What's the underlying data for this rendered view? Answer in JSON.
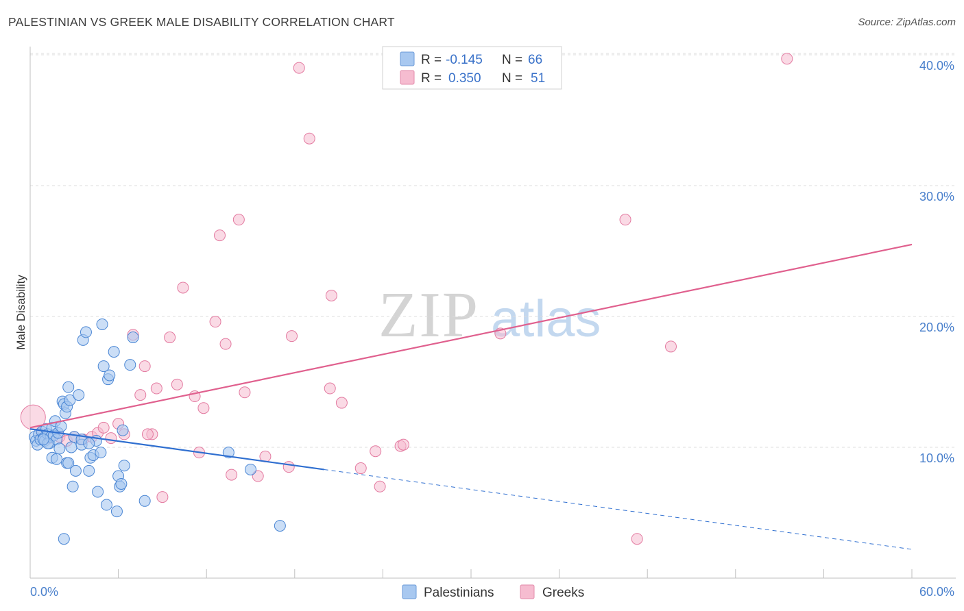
{
  "title": "PALESTINIAN VS GREEK MALE DISABILITY CORRELATION CHART",
  "source": "Source: ZipAtlas.com",
  "watermark": {
    "zip": "ZIP",
    "atlas": "atlas"
  },
  "legend": {
    "rows": [
      {
        "r_label": "R =",
        "r_value": "-0.145",
        "n_label": "N =",
        "n_value": "66"
      },
      {
        "r_label": "R =",
        "r_value": "0.350",
        "n_label": "N =",
        "n_value": "51"
      }
    ]
  },
  "colors": {
    "palestinians_fill": "#a8c8f0",
    "palestinians_stroke": "#4a86d4",
    "palestinians_line": "#2f6fd0",
    "greeks_fill": "#f6bcd0",
    "greeks_stroke": "#e37aa0",
    "greeks_line": "#e0608e",
    "grid": "#dddddd",
    "axis_text": "#4a80cc"
  },
  "chart_data": {
    "type": "scatter",
    "title": "PALESTINIAN VS GREEK MALE DISABILITY CORRELATION CHART",
    "xlabel": "",
    "ylabel": "Male Disability",
    "xlim": [
      0,
      60
    ],
    "ylim": [
      0,
      41
    ],
    "x_tick_labels": [
      "0.0%",
      "60.0%"
    ],
    "y_ticks": [
      10,
      20,
      30,
      40
    ],
    "y_tick_labels": [
      "10.0%",
      "20.0%",
      "30.0%",
      "40.0%"
    ],
    "series": [
      {
        "name": "Palestinians",
        "r": -0.145,
        "n": 66,
        "trend": {
          "x0": 0,
          "y0": 11.4,
          "x1": 20,
          "y1": 8.3,
          "dashed_to_x": 60,
          "dashed_to_y": 2.2
        },
        "points": [
          [
            0.3,
            10.8
          ],
          [
            0.4,
            10.5
          ],
          [
            0.5,
            10.2
          ],
          [
            0.6,
            11.0
          ],
          [
            0.7,
            10.6
          ],
          [
            0.8,
            11.2
          ],
          [
            0.9,
            10.7
          ],
          [
            1.0,
            10.5
          ],
          [
            1.1,
            11.4
          ],
          [
            1.2,
            11.0
          ],
          [
            1.3,
            10.3
          ],
          [
            1.4,
            10.8
          ],
          [
            1.5,
            11.5
          ],
          [
            1.6,
            10.9
          ],
          [
            1.7,
            12.0
          ],
          [
            1.8,
            10.6
          ],
          [
            1.9,
            11.1
          ],
          [
            2.0,
            9.9
          ],
          [
            2.1,
            11.6
          ],
          [
            2.2,
            13.5
          ],
          [
            2.3,
            13.3
          ],
          [
            2.4,
            12.6
          ],
          [
            2.5,
            13.1
          ],
          [
            2.6,
            14.6
          ],
          [
            2.7,
            13.6
          ],
          [
            2.8,
            10.0
          ],
          [
            3.0,
            10.8
          ],
          [
            3.1,
            8.2
          ],
          [
            3.3,
            14.0
          ],
          [
            3.5,
            10.2
          ],
          [
            3.6,
            18.2
          ],
          [
            3.8,
            18.8
          ],
          [
            4.0,
            8.2
          ],
          [
            4.1,
            9.2
          ],
          [
            4.3,
            9.4
          ],
          [
            4.5,
            10.5
          ],
          [
            4.6,
            6.6
          ],
          [
            4.8,
            9.6
          ],
          [
            4.9,
            19.4
          ],
          [
            5.0,
            16.2
          ],
          [
            5.2,
            5.6
          ],
          [
            5.3,
            15.2
          ],
          [
            5.4,
            15.5
          ],
          [
            5.7,
            17.3
          ],
          [
            5.9,
            5.1
          ],
          [
            6.0,
            7.8
          ],
          [
            6.1,
            7.0
          ],
          [
            6.2,
            7.2
          ],
          [
            6.4,
            8.6
          ],
          [
            6.8,
            16.3
          ],
          [
            7.0,
            18.4
          ],
          [
            7.8,
            5.9
          ],
          [
            1.5,
            9.2
          ],
          [
            1.8,
            9.1
          ],
          [
            2.5,
            8.8
          ],
          [
            2.6,
            8.8
          ],
          [
            3.5,
            10.6
          ],
          [
            4.0,
            10.3
          ],
          [
            6.3,
            11.3
          ],
          [
            13.5,
            9.6
          ],
          [
            15.0,
            8.3
          ],
          [
            17.0,
            4.0
          ],
          [
            2.3,
            3.0
          ],
          [
            2.9,
            7.0
          ],
          [
            1.2,
            10.3
          ],
          [
            0.9,
            10.6
          ]
        ]
      },
      {
        "name": "Greeks",
        "r": 0.35,
        "n": 51,
        "trend": {
          "x0": 0,
          "y0": 11.5,
          "x1": 60,
          "y1": 25.5
        },
        "points": [
          [
            0.2,
            12.3
          ],
          [
            0.8,
            11.0
          ],
          [
            1.3,
            10.7
          ],
          [
            2.0,
            10.8
          ],
          [
            2.5,
            10.5
          ],
          [
            3.0,
            10.8
          ],
          [
            3.6,
            10.6
          ],
          [
            4.2,
            10.8
          ],
          [
            4.6,
            11.1
          ],
          [
            5.0,
            11.5
          ],
          [
            5.5,
            10.7
          ],
          [
            6.0,
            11.8
          ],
          [
            6.4,
            11.0
          ],
          [
            7.0,
            18.6
          ],
          [
            7.5,
            14.0
          ],
          [
            7.8,
            16.2
          ],
          [
            8.3,
            11.0
          ],
          [
            8.6,
            14.5
          ],
          [
            9.0,
            6.2
          ],
          [
            9.5,
            18.4
          ],
          [
            10.0,
            14.8
          ],
          [
            10.4,
            22.2
          ],
          [
            11.2,
            13.9
          ],
          [
            11.5,
            9.6
          ],
          [
            11.8,
            13.0
          ],
          [
            12.6,
            19.6
          ],
          [
            12.9,
            26.2
          ],
          [
            13.3,
            17.9
          ],
          [
            13.7,
            7.9
          ],
          [
            14.2,
            27.4
          ],
          [
            14.6,
            14.2
          ],
          [
            15.5,
            7.8
          ],
          [
            16.0,
            9.3
          ],
          [
            17.6,
            8.5
          ],
          [
            17.8,
            18.5
          ],
          [
            18.3,
            39.0
          ],
          [
            19.0,
            33.6
          ],
          [
            20.4,
            14.5
          ],
          [
            20.5,
            21.6
          ],
          [
            21.2,
            13.4
          ],
          [
            22.5,
            8.4
          ],
          [
            23.5,
            9.7
          ],
          [
            23.8,
            7.0
          ],
          [
            25.2,
            10.1
          ],
          [
            25.4,
            10.2
          ],
          [
            32.0,
            18.7
          ],
          [
            40.5,
            27.4
          ],
          [
            41.3,
            3.0
          ],
          [
            43.6,
            17.7
          ],
          [
            51.5,
            39.7
          ],
          [
            8.0,
            11.0
          ]
        ]
      }
    ]
  }
}
